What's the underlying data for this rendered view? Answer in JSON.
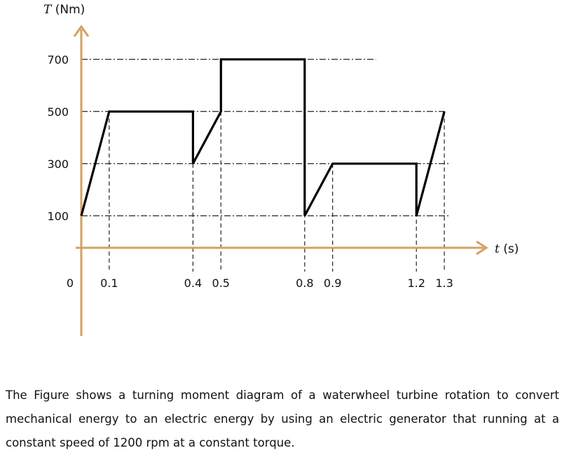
{
  "chart_data": {
    "type": "line",
    "ylabel_var": "T",
    "ylabel_unit": "(Nm)",
    "xlabel_var": "t",
    "xlabel_unit": "(s)",
    "y_ticks": [
      "700",
      "500",
      "300",
      "100"
    ],
    "x_ticks": [
      "0",
      "0.1",
      "0.4",
      "0.5",
      "0.8",
      "0.9",
      "1.2",
      "1.3"
    ],
    "series": [
      {
        "x": [
          0,
          0.1,
          0.4,
          0.4,
          0.5,
          0.5,
          0.8,
          0.8,
          0.9,
          1.2,
          1.2,
          1.3
        ],
        "y": [
          100,
          500,
          500,
          300,
          500,
          700,
          700,
          100,
          300,
          300,
          100,
          500
        ]
      }
    ],
    "axis_color": "#d4a062",
    "line_color": "#000000",
    "grid": "dash-dot reference lines at tick values"
  },
  "caption": "The Figure shows a turning moment diagram of a waterwheel turbine rotation to convert mechanical energy to an electric energy by using an electric generator that running at a constant speed of 1200 rpm at a constant torque."
}
